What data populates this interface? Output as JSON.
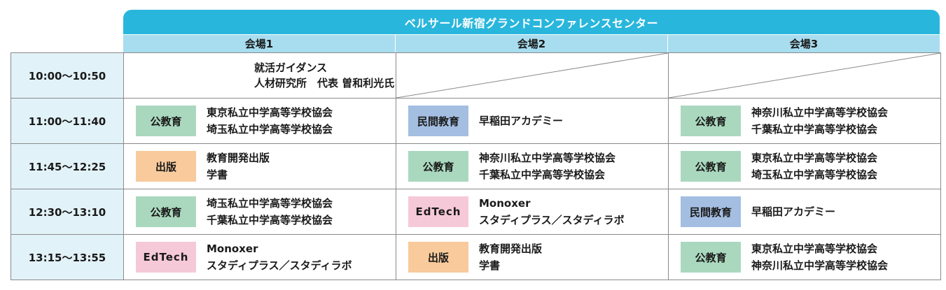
{
  "venue": "ベルサール新宿グランドコンファレンスセンター",
  "halls": [
    "会場1",
    "会場2",
    "会場3"
  ],
  "rows": [
    {
      "time": "10:00〜10:50",
      "sessions": [
        {
          "type": "guidance",
          "lines": [
            "就活ガイダンス",
            "人材研究所　代表 曽和利光氏"
          ]
        },
        {
          "type": "empty"
        },
        {
          "type": "empty"
        }
      ]
    },
    {
      "time": "11:00〜11:40",
      "sessions": [
        {
          "type": "session",
          "category": "公教育",
          "style": "public",
          "lines": [
            "東京私立中学高等学校協会",
            "埼玉私立中学高等学校協会"
          ]
        },
        {
          "type": "session",
          "category": "民間教育",
          "style": "private",
          "lines": [
            "早稲田アカデミー"
          ]
        },
        {
          "type": "session",
          "category": "公教育",
          "style": "public",
          "lines": [
            "神奈川私立中学高等学校協会",
            "千葉私立中学高等学校協会"
          ]
        }
      ]
    },
    {
      "time": "11:45〜12:25",
      "sessions": [
        {
          "type": "session",
          "category": "出版",
          "style": "publish",
          "lines": [
            "教育開発出版",
            "学書"
          ]
        },
        {
          "type": "session",
          "category": "公教育",
          "style": "public",
          "lines": [
            "神奈川私立中学高等学校協会",
            "千葉私立中学高等学校協会"
          ]
        },
        {
          "type": "session",
          "category": "公教育",
          "style": "public",
          "lines": [
            "東京私立中学高等学校協会",
            "埼玉私立中学高等学校協会"
          ]
        }
      ]
    },
    {
      "time": "12:30〜13:10",
      "sessions": [
        {
          "type": "session",
          "category": "公教育",
          "style": "public",
          "lines": [
            "埼玉私立中学高等学校協会",
            "千葉私立中学高等学校協会"
          ]
        },
        {
          "type": "session",
          "category": "EdTech",
          "style": "edtech",
          "lines": [
            "Monoxer",
            "スタディプラス／スタディラボ"
          ]
        },
        {
          "type": "session",
          "category": "民間教育",
          "style": "private",
          "lines": [
            "早稲田アカデミー"
          ]
        }
      ]
    },
    {
      "time": "13:15〜13:55",
      "sessions": [
        {
          "type": "session",
          "category": "EdTech",
          "style": "edtech",
          "lines": [
            "Monoxer",
            "スタディプラス／スタディラボ"
          ]
        },
        {
          "type": "session",
          "category": "出版",
          "style": "publish",
          "lines": [
            "教育開発出版",
            "学書"
          ]
        },
        {
          "type": "session",
          "category": "公教育",
          "style": "public",
          "lines": [
            "東京私立中学高等学校協会",
            "神奈川私立中学高等学校協会"
          ]
        }
      ]
    }
  ],
  "colors": {
    "venue_header": "#29b6dc",
    "hall_header": "#a8ddef",
    "time_cell": "#e2f2f9",
    "public": "#aad8be",
    "private": "#a4bee2",
    "edtech": "#f6c9d8",
    "publish": "#f8ca9c"
  }
}
